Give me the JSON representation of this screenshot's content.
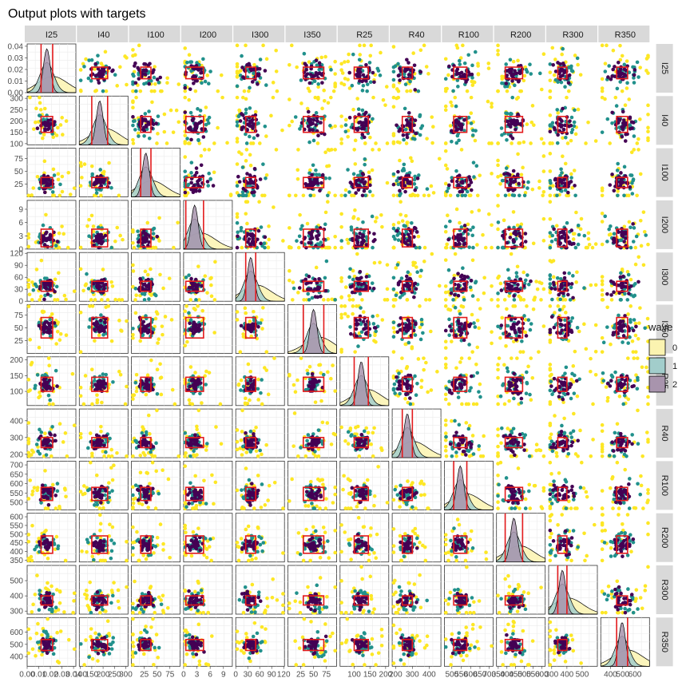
{
  "chart_data": {
    "type": "scatter",
    "title": "Output plots with targets",
    "variables": [
      "I25",
      "I40",
      "I100",
      "I200",
      "I300",
      "I350",
      "R25",
      "R40",
      "R100",
      "R200",
      "R300",
      "R350"
    ],
    "ranges": {
      "I25": [
        0,
        0.042
      ],
      "I40": [
        95,
        310
      ],
      "I100": [
        0,
        95
      ],
      "I200": [
        0,
        11
      ],
      "I300": [
        0,
        122
      ],
      "I350": [
        0,
        95
      ],
      "R25": [
        55,
        210
      ],
      "R40": [
        180,
        470
      ],
      "R100": [
        460,
        720
      ],
      "R200": [
        340,
        620
      ],
      "R300": [
        280,
        600
      ],
      "R350": [
        320,
        720
      ]
    },
    "ticks": {
      "I25": [
        "0.00",
        "0.01",
        "0.02",
        "0.03",
        "0.04"
      ],
      "I40": [
        "100",
        "150",
        "200",
        "250",
        "300"
      ],
      "I100": [
        "25",
        "50",
        "75"
      ],
      "I200": [
        "0",
        "3",
        "6",
        "9"
      ],
      "I300": [
        "0",
        "30",
        "60",
        "90",
        "120"
      ],
      "I350": [
        "25",
        "50",
        "75"
      ],
      "R25": [
        "100",
        "150",
        "200"
      ],
      "R40": [
        "200",
        "300",
        "400"
      ],
      "R100": [
        "500",
        "550",
        "600",
        "650",
        "700"
      ],
      "R200": [
        "350",
        "400",
        "450",
        "500",
        "550",
        "600"
      ],
      "R300": [
        "300",
        "400",
        "500"
      ],
      "R350": [
        "400",
        "500",
        "600"
      ]
    },
    "bottom_tick_labels": [
      "0.00",
      "0.01",
      "0.02",
      "0.03",
      "0.04"
    ],
    "targets": {
      "I25": [
        0.012,
        0.022
      ],
      "I40": [
        150,
        220
      ],
      "I100": [
        18,
        38
      ],
      "I200": [
        0.5,
        4.5
      ],
      "I300": [
        25,
        50
      ],
      "I350": [
        30,
        70
      ],
      "R25": [
        100,
        145
      ],
      "R40": [
        240,
        300
      ],
      "R100": [
        510,
        580
      ],
      "R200": [
        390,
        490
      ],
      "R300": [
        340,
        400
      ],
      "R350": [
        450,
        540
      ]
    },
    "legend": {
      "title": "wave",
      "entries": [
        "0",
        "1",
        "2"
      ],
      "placement": "right"
    },
    "colors": {
      "wave0_point": "#fde725",
      "wave1_point": "#21918c",
      "wave2_point": "#440154",
      "wave0_fill": "#fbf3b0",
      "wave1_fill": "#a2cdcb",
      "wave2_fill": "#a894ad",
      "target": "#e31a1c",
      "strip": "#d9d9d9",
      "grid": "#ebebeb"
    },
    "grid": true
  }
}
